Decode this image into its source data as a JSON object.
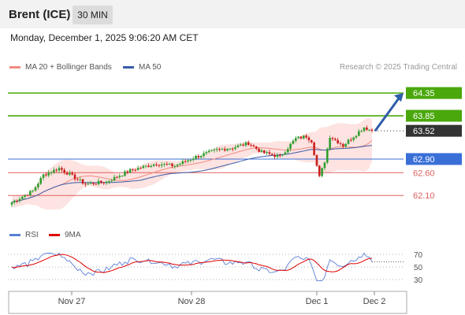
{
  "header": {
    "title": "Brent (ICE)",
    "timeframe": "30 MIN"
  },
  "timestamp": "Monday, December 1, 2025 9:06:20 AM CET",
  "legend": {
    "bollinger": {
      "label": "MA 20 + Bollinger Bands",
      "color": "#f28b82"
    },
    "ma50": {
      "label": "MA 50",
      "color": "#3a5ca8"
    }
  },
  "credit": "Research © 2025 Trading Central",
  "rsi_legend": {
    "rsi": {
      "label": "RSI",
      "color": "#5b7fd6"
    },
    "ma9": {
      "label": "9MA",
      "color": "#e00000"
    }
  },
  "chart_data": [
    {
      "type": "candlestick",
      "title": "Brent (ICE)",
      "ylim": [
        61.55,
        64.75
      ],
      "x_ticks": [
        "Nov 27",
        "Nov 28",
        "Dec 1",
        "Dec 2"
      ],
      "current_price": {
        "value": 63.52,
        "label": "63.52"
      },
      "levels": [
        {
          "value": 64.35,
          "label": "64.35",
          "kind": "resistance",
          "color": "#4aa80c"
        },
        {
          "value": 63.85,
          "label": "63.85",
          "kind": "resistance",
          "color": "#4aa80c"
        },
        {
          "value": 62.9,
          "label": "62.90",
          "kind": "pivot",
          "color": "#3a6fd8"
        },
        {
          "value": 62.6,
          "label": "62.60",
          "kind": "support",
          "color": "#e06060"
        },
        {
          "value": 62.1,
          "label": "62.10",
          "kind": "support",
          "color": "#e06060"
        }
      ],
      "forecast_arrow": {
        "from": 63.52,
        "to": 64.35
      },
      "colors": {
        "up": "#2f9e2f",
        "down": "#c8201e",
        "band_fill": "#fde3e1",
        "ma20": "#f28b82",
        "ma50": "#3a5ca8"
      }
    },
    {
      "type": "line",
      "title": "RSI",
      "ylim": [
        20,
        80
      ],
      "y_ticks": [
        70,
        50,
        30
      ],
      "series": [
        {
          "name": "RSI",
          "color": "#5b7fd6"
        },
        {
          "name": "9MA",
          "color": "#e00000"
        }
      ]
    }
  ]
}
